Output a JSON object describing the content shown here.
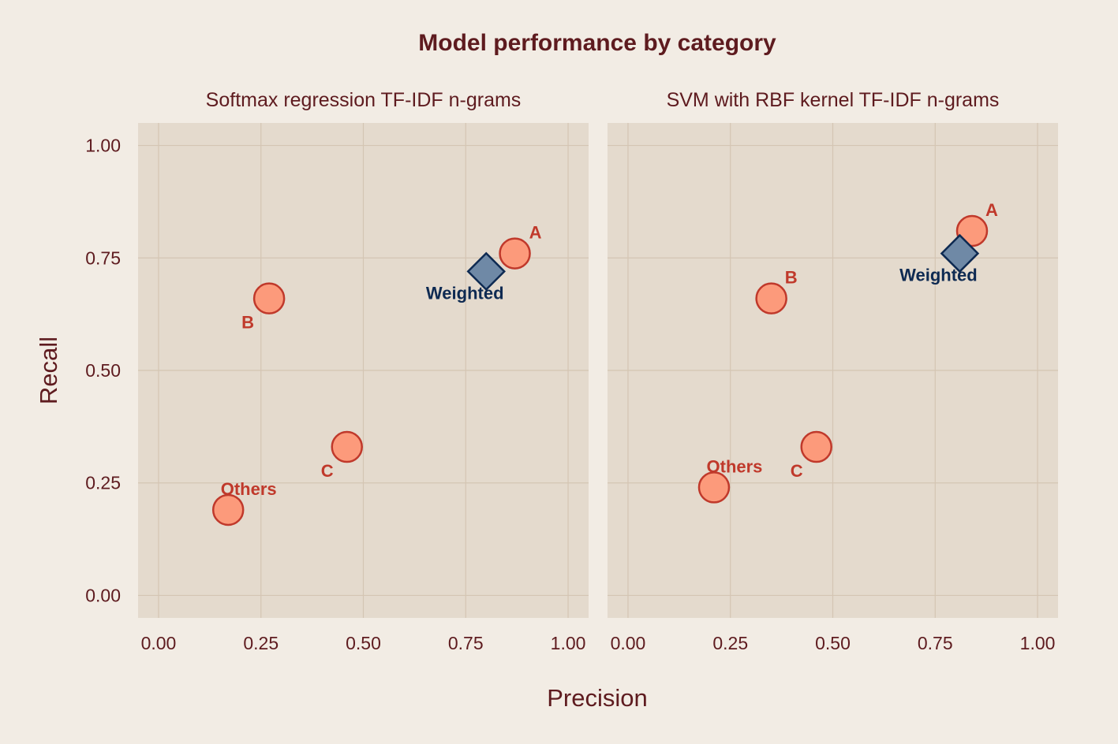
{
  "chart_data": {
    "type": "scatter",
    "title": "Model performance by category",
    "xlabel": "Precision",
    "ylabel": "Recall",
    "xlim": [
      -0.05,
      1.05
    ],
    "ylim": [
      -0.05,
      1.05
    ],
    "ticks": [
      "0.00",
      "0.25",
      "0.50",
      "0.75",
      "1.00"
    ],
    "grid": true,
    "colors": {
      "background": "#f2ece4",
      "panel": "#e4dacd",
      "grid": "#d4c5b3",
      "text": "#5e1b1f",
      "category_fill": "#fc9a7b",
      "category_stroke": "#c0392b",
      "category_label": "#c0392b",
      "weighted_fill": "#6f89a6",
      "weighted_stroke": "#0e2a52",
      "weighted_label": "#0e2a52"
    },
    "facets": [
      {
        "title": "Softmax regression TF-IDF n-grams",
        "points": [
          {
            "label": "A",
            "x": 0.87,
            "y": 0.76,
            "kind": "category"
          },
          {
            "label": "B",
            "x": 0.27,
            "y": 0.66,
            "kind": "category"
          },
          {
            "label": "C",
            "x": 0.46,
            "y": 0.33,
            "kind": "category"
          },
          {
            "label": "Others",
            "x": 0.17,
            "y": 0.19,
            "kind": "category"
          },
          {
            "label": "Weighted",
            "x": 0.8,
            "y": 0.72,
            "kind": "weighted"
          }
        ]
      },
      {
        "title": "SVM with RBF kernel TF-IDF n-grams",
        "points": [
          {
            "label": "A",
            "x": 0.84,
            "y": 0.81,
            "kind": "category"
          },
          {
            "label": "B",
            "x": 0.35,
            "y": 0.66,
            "kind": "category"
          },
          {
            "label": "C",
            "x": 0.46,
            "y": 0.33,
            "kind": "category"
          },
          {
            "label": "Others",
            "x": 0.21,
            "y": 0.24,
            "kind": "category"
          },
          {
            "label": "Weighted",
            "x": 0.81,
            "y": 0.76,
            "kind": "weighted"
          }
        ]
      }
    ]
  }
}
